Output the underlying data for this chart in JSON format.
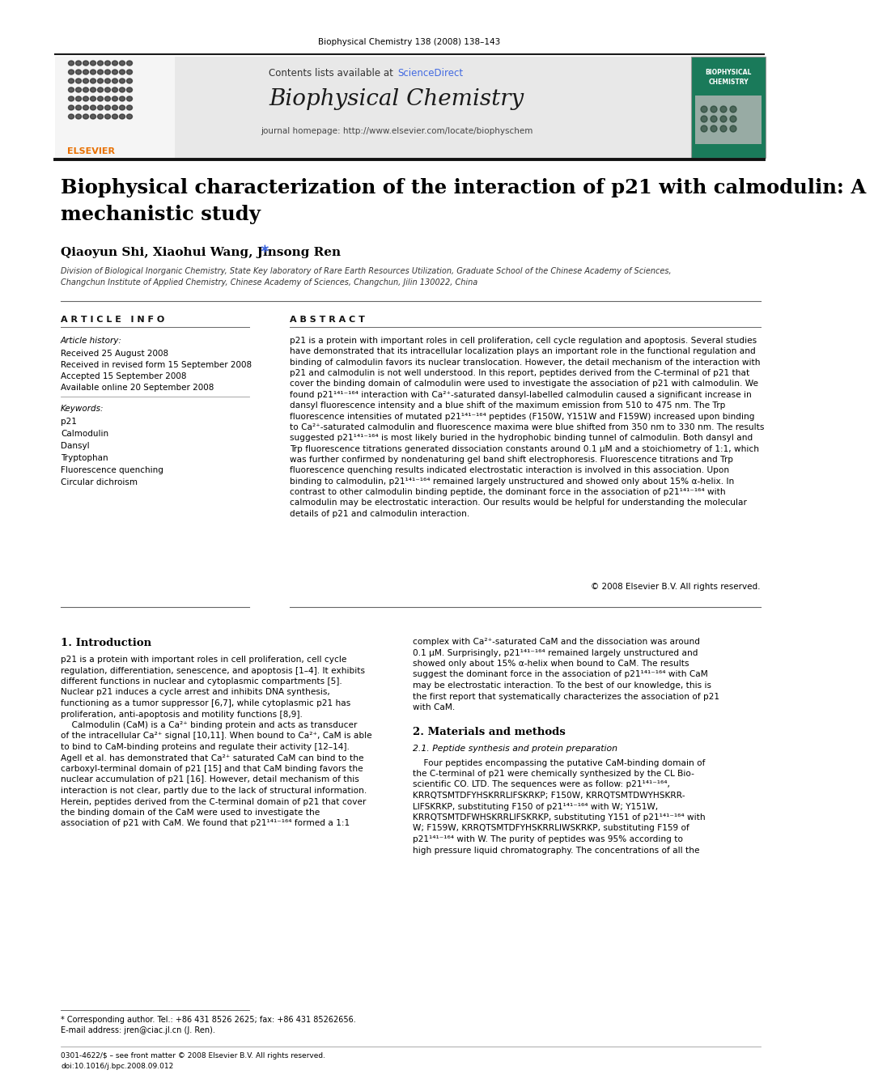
{
  "page_width": 9.92,
  "page_height": 13.23,
  "bg_color": "#ffffff",
  "journal_ref": "Biophysical Chemistry 138 (2008) 138–143",
  "sciencedirect_color": "#4169e1",
  "journal_name": "Biophysical Chemistry",
  "journal_homepage": "journal homepage: http://www.elsevier.com/locate/biophyschem",
  "header_bg": "#e8e8e8",
  "title": "Biophysical characterization of the interaction of p21 with calmodulin: A\nmechanistic study",
  "authors": "Qiaoyun Shi, Xiaohui Wang, Jinsong Ren",
  "affiliation": "Division of Biological Inorganic Chemistry, State Key laboratory of Rare Earth Resources Utilization, Graduate School of the Chinese Academy of Sciences,\nChangchun Institute of Applied Chemistry, Chinese Academy of Sciences, Changchun, Jilin 130022, China",
  "article_info_label": "A R T I C L E   I N F O",
  "abstract_label": "A B S T R A C T",
  "article_history_label": "Article history:",
  "received": "Received 25 August 2008",
  "received_revised": "Received in revised form 15 September 2008",
  "accepted": "Accepted 15 September 2008",
  "available": "Available online 20 September 2008",
  "keywords_label": "Keywords:",
  "keywords": [
    "p21",
    "Calmodulin",
    "Dansyl",
    "Tryptophan",
    "Fluorescence quenching",
    "Circular dichroism"
  ],
  "abstract_text": "p21 is a protein with important roles in cell proliferation, cell cycle regulation and apoptosis. Several studies\nhave demonstrated that its intracellular localization plays an important role in the functional regulation and\nbinding of calmodulin favors its nuclear translocation. However, the detail mechanism of the interaction with\np21 and calmodulin is not well understood. In this report, peptides derived from the C-terminal of p21 that\ncover the binding domain of calmodulin were used to investigate the association of p21 with calmodulin. We\nfound p21¹⁴¹⁻¹⁶⁴ interaction with Ca²⁺-saturated dansyl-labelled calmodulin caused a significant increase in\ndansyl fluorescence intensity and a blue shift of the maximum emission from 510 to 475 nm. The Trp\nfluorescence intensities of mutated p21¹⁴¹⁻¹⁶⁴ peptides (F150W, Y151W and F159W) increased upon binding\nto Ca²⁺-saturated calmodulin and fluorescence maxima were blue shifted from 350 nm to 330 nm. The results\nsuggested p21¹⁴¹⁻¹⁶⁴ is most likely buried in the hydrophobic binding tunnel of calmodulin. Both dansyl and\nTrp fluorescence titrations generated dissociation constants around 0.1 μM and a stoichiometry of 1:1, which\nwas further confirmed by nondenaturing gel band shift electrophoresis. Fluorescence titrations and Trp\nfluorescence quenching results indicated electrostatic interaction is involved in this association. Upon\nbinding to calmodulin, p21¹⁴¹⁻¹⁶⁴ remained largely unstructured and showed only about 15% α-helix. In\ncontrast to other calmodulin binding peptide, the dominant force in the association of p21¹⁴¹⁻¹⁶⁴ with\ncalmodulin may be electrostatic interaction. Our results would be helpful for understanding the molecular\ndetails of p21 and calmodulin interaction.",
  "copyright": "© 2008 Elsevier B.V. All rights reserved.",
  "section1_title": "1. Introduction",
  "intro_col1_lines": [
    "p21 is a protein with important roles in cell proliferation, cell cycle",
    "regulation, differentiation, senescence, and apoptosis [1–4]. It exhibits",
    "different functions in nuclear and cytoplasmic compartments [5].",
    "Nuclear p21 induces a cycle arrest and inhibits DNA synthesis,",
    "functioning as a tumor suppressor [6,7], while cytoplasmic p21 has",
    "proliferation, anti-apoptosis and motility functions [8,9].",
    "    Calmodulin (CaM) is a Ca²⁺ binding protein and acts as transducer",
    "of the intracellular Ca²⁺ signal [10,11]. When bound to Ca²⁺, CaM is able",
    "to bind to CaM-binding proteins and regulate their activity [12–14].",
    "Agell et al. has demonstrated that Ca²⁺ saturated CaM can bind to the",
    "carboxyl-terminal domain of p21 [15] and that CaM binding favors the",
    "nuclear accumulation of p21 [16]. However, detail mechanism of this",
    "interaction is not clear, partly due to the lack of structural information.",
    "Herein, peptides derived from the C-terminal domain of p21 that cover",
    "the binding domain of the CaM were used to investigate the",
    "association of p21 with CaM. We found that p21¹⁴¹⁻¹⁶⁴ formed a 1:1"
  ],
  "intro_col2_lines": [
    "complex with Ca²⁺-saturated CaM and the dissociation was around",
    "0.1 μM. Surprisingly, p21¹⁴¹⁻¹⁶⁴ remained largely unstructured and",
    "showed only about 15% α-helix when bound to CaM. The results",
    "suggest the dominant force in the association of p21¹⁴¹⁻¹⁶⁴ with CaM",
    "may be electrostatic interaction. To the best of our knowledge, this is",
    "the first report that systematically characterizes the association of p21",
    "with CaM."
  ],
  "section2_title": "2. Materials and methods",
  "section21_title": "2.1. Peptide synthesis and protein preparation",
  "section21_lines": [
    "    Four peptides encompassing the putative CaM-binding domain of",
    "the C-terminal of p21 were chemically synthesized by the CL Bio-",
    "scientific CO. LTD. The sequences were as follow: p21¹⁴¹⁻¹⁶⁴,",
    "KRRQTSMTDFYHSKRRLIFSKRKP; F150W, KRRQTSMTDWYHSKRR-",
    "LIFSKRKP, substituting F150 of p21¹⁴¹⁻¹⁶⁴ with W; Y151W,",
    "KRRQTSMTDFWHSKRRLIFSKRKP, substituting Y151 of p21¹⁴¹⁻¹⁶⁴ with",
    "W; F159W, KRRQTSMTDFYHSKRRLIWSKRKP, substituting F159 of",
    "p21¹⁴¹⁻¹⁶⁴ with W. The purity of peptides was 95% according to",
    "high pressure liquid chromatography. The concentrations of all the"
  ],
  "footnote_star": "* Corresponding author. Tel.: +86 431 8526 2625; fax: +86 431 85262656.",
  "footnote_email": "E-mail address: jren@ciac.jl.cn (J. Ren).",
  "footer_left": "0301-4622/$ – see front matter © 2008 Elsevier B.V. All rights reserved.",
  "footer_doi": "doi:10.1016/j.bpc.2008.09.012"
}
